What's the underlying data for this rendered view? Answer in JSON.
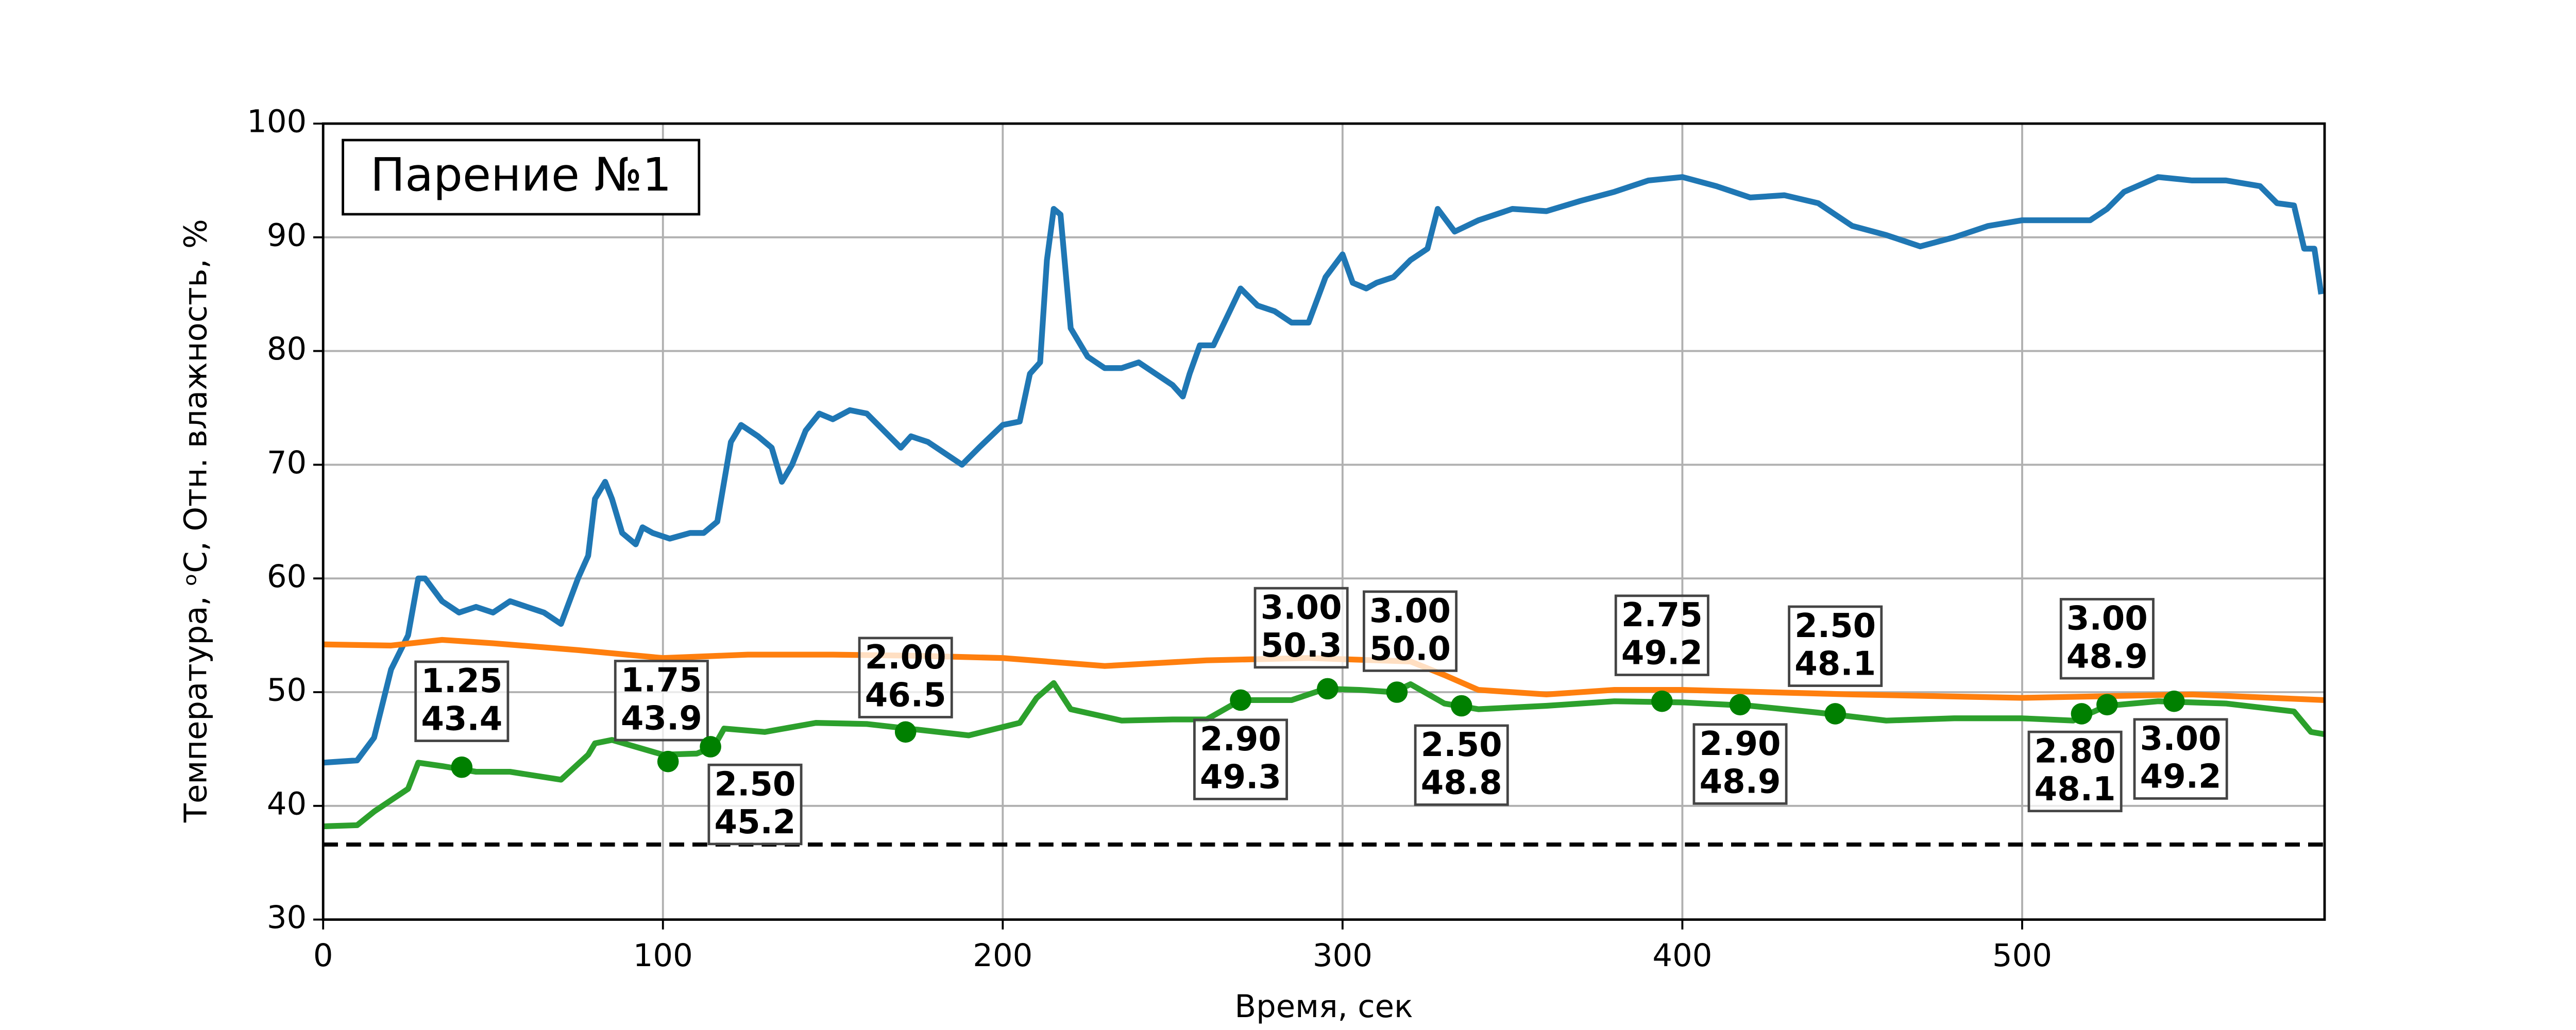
{
  "chart_data": {
    "type": "line",
    "title": "Парение №1",
    "x_label": "Время, сек",
    "y_label": "Температура, ᵒC, Отн. влажность, %",
    "xlim": [
      0,
      589
    ],
    "ylim": [
      30,
      100
    ],
    "xticks": [
      0,
      100,
      200,
      300,
      400,
      500
    ],
    "yticks": [
      30,
      40,
      50,
      60,
      70,
      80,
      90,
      100
    ],
    "grid": true,
    "reference_line": 36.6,
    "reference_color": "#000000",
    "marker_color": "#008000",
    "series": [
      {
        "color": "#1f77b4",
        "x": [
          0,
          10,
          15,
          20,
          25,
          28,
          30,
          35,
          40,
          45,
          50,
          55,
          60,
          65,
          70,
          75,
          78,
          80,
          83,
          85,
          88,
          92,
          94,
          97,
          102,
          108,
          112,
          116,
          120,
          123,
          128,
          132,
          135,
          138,
          142,
          146,
          150,
          155,
          160,
          165,
          170,
          173,
          178,
          183,
          188,
          193,
          200,
          205,
          208,
          211,
          213,
          215,
          217,
          220,
          225,
          230,
          235,
          240,
          245,
          250,
          253,
          255,
          258,
          262,
          266,
          270,
          275,
          280,
          285,
          290,
          295,
          300,
          303,
          307,
          310,
          315,
          320,
          325,
          328,
          333,
          340,
          350,
          360,
          370,
          380,
          390,
          400,
          410,
          420,
          430,
          440,
          450,
          460,
          470,
          480,
          490,
          500,
          510,
          520,
          525,
          530,
          540,
          550,
          560,
          570,
          575,
          580,
          583,
          586,
          588
        ],
        "values": [
          43.8,
          44,
          46,
          52,
          55,
          60,
          60,
          58,
          57,
          57.5,
          57,
          58,
          57.5,
          57,
          56,
          60,
          62,
          67,
          68.5,
          67,
          64,
          63,
          64.5,
          64,
          63.5,
          64,
          64,
          65,
          72,
          73.5,
          72.5,
          71.5,
          68.5,
          70,
          73,
          74.5,
          74,
          74.8,
          74.5,
          73,
          71.5,
          72.5,
          72,
          71,
          70,
          71.5,
          73.5,
          73.8,
          78,
          79,
          88,
          92.5,
          92,
          82,
          79.5,
          78.5,
          78.5,
          79,
          78,
          77,
          76,
          78,
          80.5,
          80.5,
          83,
          85.5,
          84,
          83.5,
          82.5,
          82.5,
          86.5,
          88.5,
          86,
          85.5,
          86,
          86.5,
          88,
          89,
          92.5,
          90.5,
          91.5,
          92.5,
          92.3,
          93.2,
          94,
          95,
          95.3,
          94.5,
          93.5,
          93.7,
          93,
          91,
          90.2,
          89.2,
          90,
          91,
          91.5,
          91.5,
          91.5,
          92.5,
          94,
          95.3,
          95,
          95,
          94.5,
          93,
          92.8,
          89,
          89,
          85
        ]
      },
      {
        "color": "#ff7f0e",
        "x": [
          0,
          20,
          35,
          50,
          75,
          100,
          125,
          150,
          175,
          200,
          230,
          260,
          290,
          320,
          330,
          340,
          360,
          380,
          400,
          450,
          500,
          550,
          589
        ],
        "values": [
          54.2,
          54.1,
          54.6,
          54.3,
          53.7,
          53.0,
          53.3,
          53.3,
          53.2,
          53.0,
          52.3,
          52.8,
          53.0,
          52.7,
          51.5,
          50.2,
          49.8,
          50.2,
          50.2,
          49.8,
          49.5,
          49.8,
          49.3
        ]
      },
      {
        "color": "#2ca02c",
        "x": [
          0,
          10,
          15,
          20,
          25,
          28,
          35,
          45,
          55,
          70,
          78,
          80,
          85,
          100,
          110,
          115,
          118,
          130,
          145,
          160,
          175,
          190,
          205,
          210,
          215,
          220,
          235,
          250,
          260,
          270,
          285,
          295,
          305,
          315,
          320,
          330,
          340,
          360,
          380,
          400,
          420,
          440,
          460,
          480,
          500,
          515,
          525,
          540,
          560,
          580,
          585,
          589
        ],
        "values": [
          38.2,
          38.3,
          39.5,
          40.5,
          41.5,
          43.8,
          43.5,
          43.0,
          43.0,
          42.3,
          44.5,
          45.5,
          45.8,
          44.5,
          44.6,
          45.2,
          46.8,
          46.5,
          47.3,
          47.2,
          46.7,
          46.2,
          47.3,
          49.5,
          50.8,
          48.5,
          47.5,
          47.6,
          47.6,
          49.3,
          49.3,
          50.3,
          50.2,
          50.0,
          50.7,
          49.0,
          48.5,
          48.8,
          49.2,
          49.1,
          48.8,
          48.2,
          47.5,
          47.7,
          47.7,
          47.5,
          48.8,
          49.2,
          49.0,
          48.3,
          46.5,
          46.3
        ]
      }
    ],
    "markers": [
      {
        "x": 40.8,
        "y": 43.4,
        "y_label": "43.4",
        "text": "1.25"
      },
      {
        "x": 101.5,
        "y": 43.9,
        "y_label": "43.9",
        "text": "1.75"
      },
      {
        "x": 114,
        "y": 45.2,
        "y_label": "45.2",
        "text": "2.50"
      },
      {
        "x": 171.4,
        "y": 46.5,
        "y_label": "46.5",
        "text": "2.00"
      },
      {
        "x": 270,
        "y": 49.3,
        "y_label": "49.3",
        "text": "2.90"
      },
      {
        "x": 295.6,
        "y": 50.3,
        "y_label": "50.3",
        "text": "3.00"
      },
      {
        "x": 316,
        "y": 50.0,
        "y_label": "50.0",
        "text": "3.00"
      },
      {
        "x": 335,
        "y": 48.8,
        "y_label": "48.8",
        "text": "2.50"
      },
      {
        "x": 394,
        "y": 49.2,
        "y_label": "49.2",
        "text": "2.75"
      },
      {
        "x": 417,
        "y": 48.9,
        "y_label": "48.9",
        "text": "2.90"
      },
      {
        "x": 445,
        "y": 48.1,
        "y_label": "48.1",
        "text": "2.50"
      },
      {
        "x": 517.5,
        "y": 48.1,
        "y_label": "48.1",
        "text": "2.80"
      },
      {
        "x": 525,
        "y": 48.9,
        "y_label": "48.9",
        "text": "3.00"
      },
      {
        "x": 544.7,
        "y": 49.2,
        "y_label": "49.2",
        "text": "3.00"
      }
    ]
  }
}
